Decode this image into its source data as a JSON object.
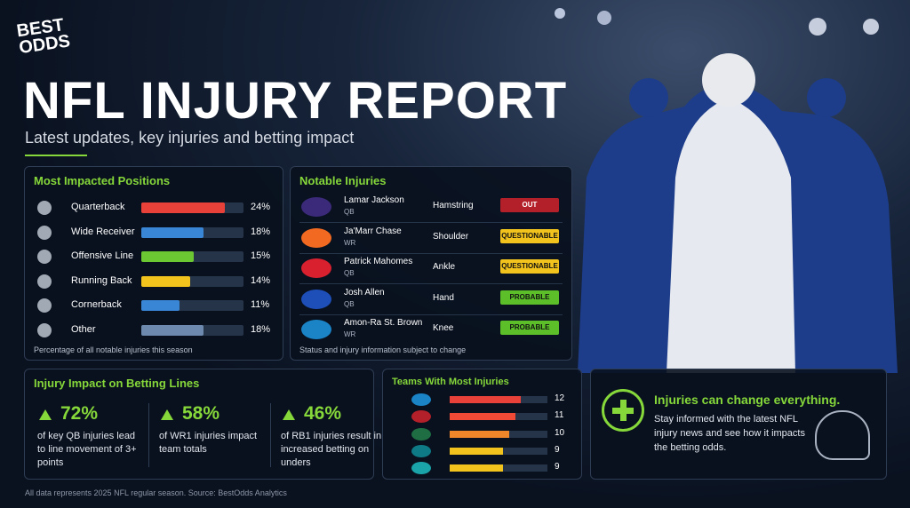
{
  "header": {
    "logo": [
      "BEST",
      "ODDS"
    ],
    "title": "NFL INJURY REPORT",
    "subtitle": "Latest updates, key injuries and betting impact"
  },
  "positions": {
    "title": "Most Impacted Positions",
    "items": [
      {
        "name": "Quarterback",
        "value": 24,
        "label": "24%",
        "color": "#e8413a"
      },
      {
        "name": "Wide Receiver",
        "value": 18,
        "label": "18%",
        "color": "#3a86d6"
      },
      {
        "name": "Offensive Line",
        "value": 15,
        "label": "15%",
        "color": "#6cc832"
      },
      {
        "name": "Running Back",
        "value": 14,
        "label": "14%",
        "color": "#f2c31c"
      },
      {
        "name": "Cornerback",
        "value": 11,
        "label": "11%",
        "color": "#3a86d6"
      },
      {
        "name": "Other",
        "value": 18,
        "label": "18%",
        "color": "#6d89ad"
      }
    ],
    "note": "Percentage of all notable injuries this season"
  },
  "injuries": {
    "title": "Notable Injuries",
    "rows": [
      {
        "name": "Lamar Jackson",
        "position": "QB",
        "injury": "Hamstring",
        "status": "OUT",
        "color": "#b3202a",
        "logo": "#3b2a7a"
      },
      {
        "name": "Ja'Marr Chase",
        "position": "WR",
        "injury": "Shoulder",
        "status": "QUESTIONABLE",
        "color": "#f2c31c",
        "logo": "#f26a21"
      },
      {
        "name": "Patrick Mahomes",
        "position": "QB",
        "injury": "Ankle",
        "status": "QUESTIONABLE",
        "color": "#f2c31c",
        "logo": "#d8202f"
      },
      {
        "name": "Josh Allen",
        "position": "QB",
        "injury": "Hand",
        "status": "PROBABLE",
        "color": "#5cbf2a",
        "logo": "#1e4fb8"
      },
      {
        "name": "Amon-Ra St. Brown",
        "position": "WR",
        "injury": "Knee",
        "status": "PROBABLE",
        "color": "#5cbf2a",
        "logo": "#1a84c7"
      }
    ],
    "note": "Status and injury information subject to change"
  },
  "betting": {
    "title": "Injury Impact on Betting Lines",
    "items": [
      {
        "stat": "72%",
        "text": "of key QB injuries lead to line movement of 3+ points"
      },
      {
        "stat": "58%",
        "text": "of WR1 injuries impact team totals"
      },
      {
        "stat": "46%",
        "text": "of RB1 injuries result in increased betting on unders"
      }
    ]
  },
  "teams": {
    "title": "Teams With Most Injuries",
    "values": [
      12,
      11,
      10,
      9,
      9
    ],
    "colors": [
      "#e8413a",
      "#ee4a36",
      "#f0862a",
      "#f2c31c",
      "#f2c31c"
    ],
    "logos": [
      "#1a84c7",
      "#b3202a",
      "#1f6e43",
      "#0e7a86",
      "#1aa3a8"
    ]
  },
  "callout": {
    "title": "Injuries can change everything.",
    "text": "Stay informed with the latest NFL injury news and see how it impacts the betting odds."
  },
  "footer": "All data represents 2025 NFL regular season. Source: BestOdds Analytics"
}
